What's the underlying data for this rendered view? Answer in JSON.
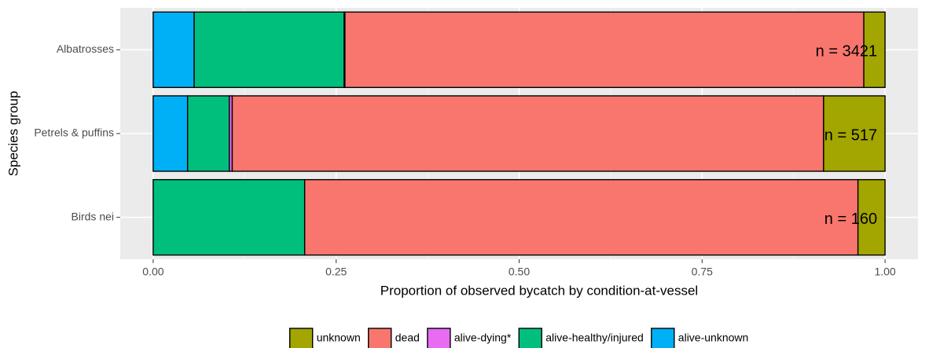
{
  "chart_data": {
    "type": "stacked-bar-horizontal",
    "x_label": "Proportion of observed bycatch by condition-at-vessel",
    "y_label": "Species group",
    "categories": [
      "Albatrosses",
      "Petrels & puffins",
      "Birds nei"
    ],
    "series": [
      {
        "name": "unknown",
        "color": "#a3a500",
        "values": [
          0.029,
          0.084,
          0.037
        ]
      },
      {
        "name": "dead",
        "color": "#f8766d",
        "values": [
          0.709,
          0.808,
          0.756
        ]
      },
      {
        "name": "alive-dying*",
        "color": "#e76bf3",
        "values": [
          0.001,
          0.004,
          0
        ]
      },
      {
        "name": "alive-healthy/injured",
        "color": "#00bf7d",
        "values": [
          0.205,
          0.057,
          0.207
        ]
      },
      {
        "name": "alive-unknown",
        "color": "#00b0f6",
        "values": [
          0.056,
          0.047,
          0
        ]
      }
    ],
    "annotations": [
      "n = 3421",
      "n = 517",
      "n = 160"
    ],
    "xlim": [
      -0.045,
      1.045
    ],
    "xticks": [
      {
        "value": 0,
        "label": "0.00"
      },
      {
        "value": 0.25,
        "label": "0.25"
      },
      {
        "value": 0.5,
        "label": "0.50"
      },
      {
        "value": 0.75,
        "label": "0.75"
      },
      {
        "value": 1,
        "label": "1.00"
      }
    ],
    "grid": true
  }
}
